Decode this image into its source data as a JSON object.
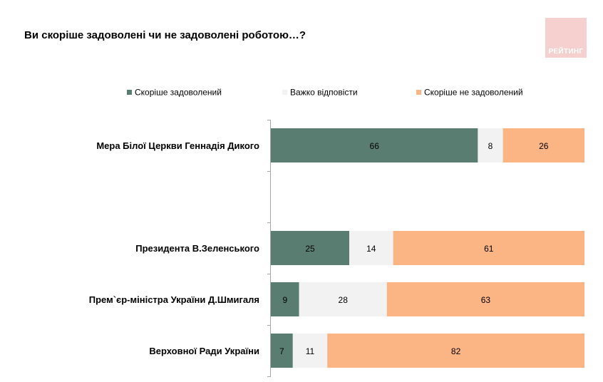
{
  "header": {
    "title": "Ви скоріше задоволені чи не задоволені роботою…?",
    "logo_text": "РЕЙТИНГ"
  },
  "colors": {
    "satisfied": "#5a7d72",
    "hard": "#f2f2f2",
    "unsatisfied": "#fbb584",
    "axis": "#a6a6a6"
  },
  "chart_data": {
    "type": "bar",
    "orientation": "horizontal",
    "stacked": true,
    "title": "Ви скоріше задоволені чи не задоволені роботою…?",
    "xlim": [
      0,
      100
    ],
    "legend_position": "top",
    "categories": [
      "Мера Білої Церкви Геннадія Дикого",
      "Президента В.Зеленського",
      "Прем`єр-міністра України Д.Шмигаля",
      "Верховної Ради України"
    ],
    "series": [
      {
        "name": "Скоріше задоволений",
        "color": "#5a7d72",
        "values": [
          66,
          25,
          9,
          7
        ]
      },
      {
        "name": "Важко відповісти",
        "color": "#f2f2f2",
        "values": [
          8,
          14,
          28,
          11
        ]
      },
      {
        "name": "Скоріше не задоволений",
        "color": "#fbb584",
        "values": [
          26,
          61,
          63,
          82
        ]
      }
    ]
  }
}
